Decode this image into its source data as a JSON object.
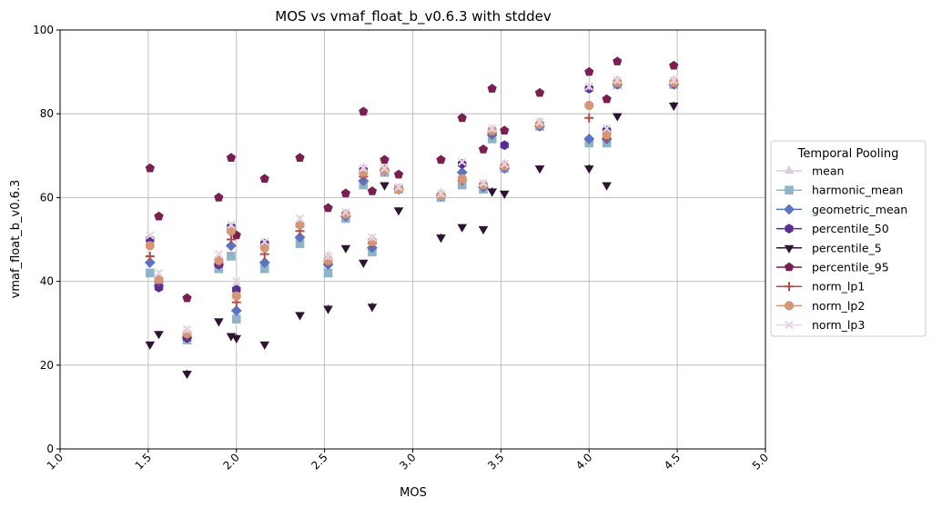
{
  "chart_data": {
    "type": "scatter",
    "title": "MOS vs vmaf_float_b_v0.6.3 with stddev",
    "xlabel": "MOS",
    "ylabel": "vmaf_float_b_v0.6.3",
    "xlim": [
      1.0,
      5.0
    ],
    "ylim": [
      0,
      100
    ],
    "xticks": [
      "1.0",
      "1.5",
      "2.0",
      "2.5",
      "3.0",
      "3.5",
      "4.0",
      "4.5",
      "5.0"
    ],
    "yticks": [
      "0",
      "20",
      "40",
      "60",
      "80",
      "100"
    ],
    "grid": true,
    "legend": {
      "title": "Temporal Pooling",
      "placement": "outside right"
    },
    "x": [
      1.51,
      1.56,
      1.72,
      1.9,
      1.97,
      2.0,
      2.16,
      2.36,
      2.52,
      2.62,
      2.72,
      2.77,
      2.84,
      2.92,
      3.16,
      3.28,
      3.4,
      3.45,
      3.52,
      3.72,
      4.0,
      4.1,
      4.16,
      4.48
    ],
    "series": [
      {
        "name": "mean",
        "color": "#dccbe0",
        "marker": "triangle-up",
        "values": [
          50,
          41,
          27,
          45,
          53,
          39,
          49,
          54,
          46,
          56,
          67,
          50,
          67,
          62,
          61,
          68,
          63,
          76,
          68,
          78,
          86,
          76,
          88,
          88
        ]
      },
      {
        "name": "harmonic_mean",
        "color": "#8fb3c8",
        "marker": "square",
        "values": [
          42,
          39,
          26,
          43,
          46,
          31,
          43,
          49,
          42,
          55,
          63,
          47,
          66,
          62,
          60,
          63,
          62,
          74,
          67,
          77,
          73,
          73,
          87,
          87
        ]
      },
      {
        "name": "geometric_mean",
        "color": "#5b73c0",
        "marker": "diamond",
        "values": [
          44.5,
          39,
          26.5,
          44,
          48.5,
          33,
          44.5,
          50.5,
          44,
          55.5,
          64,
          48,
          66.5,
          62,
          60.5,
          66,
          62.5,
          75,
          67,
          77,
          74,
          74,
          87,
          87
        ]
      },
      {
        "name": "percentile_50",
        "color": "#5a2d91",
        "marker": "hexagon",
        "values": [
          50,
          38.5,
          26.5,
          44,
          53,
          38,
          49,
          53.5,
          45,
          56,
          66.5,
          49.5,
          66.5,
          62,
          60.5,
          68,
          63,
          76,
          72.5,
          77.5,
          86,
          76,
          87.5,
          87.5
        ]
      },
      {
        "name": "percentile_5",
        "color": "#2d1433",
        "marker": "triangle-down",
        "values": [
          25,
          27.5,
          18,
          30.5,
          27,
          26.5,
          25,
          32,
          33.5,
          48,
          44.5,
          34,
          63,
          57,
          50.5,
          53,
          52.5,
          61.5,
          61,
          67,
          67,
          63,
          79.5,
          82
        ]
      },
      {
        "name": "percentile_95",
        "color": "#7a1f52",
        "marker": "pentagon",
        "values": [
          67,
          55.5,
          36,
          60,
          69.5,
          51,
          64.5,
          69.5,
          57.5,
          61,
          80.5,
          61.5,
          69,
          65.5,
          69,
          79,
          71.5,
          86,
          76,
          85,
          90,
          83.5,
          92.5,
          91.5
        ]
      },
      {
        "name": "norm_lp1",
        "color": "#b14b45",
        "marker": "plus",
        "values": [
          46,
          40,
          27,
          44.5,
          50,
          35,
          46.5,
          52,
          44.5,
          56,
          65,
          49,
          66.5,
          62,
          60.5,
          64,
          63,
          75.5,
          67.5,
          77.5,
          79,
          74,
          87,
          87
        ]
      },
      {
        "name": "norm_lp2",
        "color": "#d59677",
        "marker": "octagon",
        "values": [
          48.5,
          40.5,
          27.5,
          45,
          52,
          36.5,
          48,
          53.5,
          45,
          56,
          66,
          49.5,
          66.5,
          62,
          60.5,
          64.5,
          63,
          76,
          67.5,
          77.5,
          82,
          75,
          87.5,
          87.5
        ]
      },
      {
        "name": "norm_lp3",
        "color": "#e6d3e4",
        "marker": "x",
        "values": [
          51,
          42,
          28.5,
          46.5,
          53.5,
          40,
          49.5,
          55,
          46,
          56.5,
          67,
          50.5,
          67,
          62.5,
          61,
          68.5,
          63.5,
          76.5,
          68,
          78,
          86.5,
          76.5,
          88,
          88
        ]
      }
    ]
  }
}
